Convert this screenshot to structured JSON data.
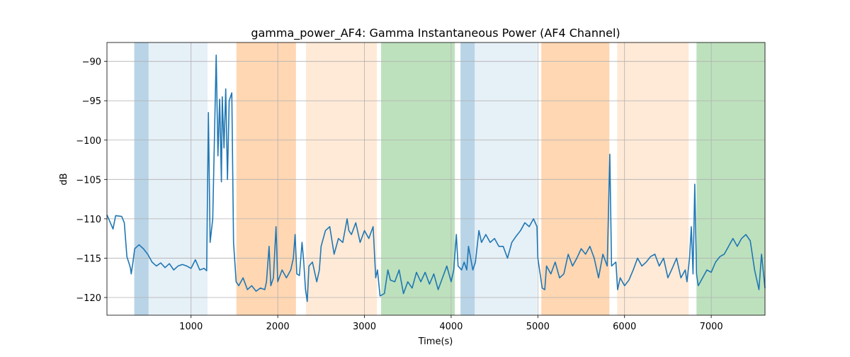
{
  "chart_data": {
    "type": "line",
    "title": "gamma_power_AF4: Gamma Instantaneous Power (AF4 Channel)",
    "x_label": "Time(s)",
    "y_label": "dB",
    "xlim": [
      30,
      7620
    ],
    "ylim": [
      -122.25,
      -87.6
    ],
    "xticks": [
      1000,
      2000,
      3000,
      4000,
      5000,
      6000,
      7000
    ],
    "yticks": [
      {
        "value": -90,
        "label": "−90"
      },
      {
        "value": -95,
        "label": "−95"
      },
      {
        "value": -100,
        "label": "−100"
      },
      {
        "value": -105,
        "label": "−105"
      },
      {
        "value": -110,
        "label": "−110"
      },
      {
        "value": -115,
        "label": "−115"
      },
      {
        "value": -120,
        "label": "−120"
      }
    ],
    "grid": true,
    "color": "#1f77b4",
    "spans": [
      {
        "x0": 345,
        "x1": 510,
        "color": "#1f77b450"
      },
      {
        "x0": 510,
        "x1": 1190,
        "color": "#1f77b41c"
      },
      {
        "x0": 1523,
        "x1": 2210,
        "color": "#ff7f0e50"
      },
      {
        "x0": 2325,
        "x1": 3143,
        "color": "#ff7f0e2a"
      },
      {
        "x0": 3192,
        "x1": 4043,
        "color": "#2ca02c50"
      },
      {
        "x0": 4108,
        "x1": 4271,
        "color": "#1f77b450"
      },
      {
        "x0": 4271,
        "x1": 4990,
        "color": "#1f77b41c"
      },
      {
        "x0": 5040,
        "x1": 5825,
        "color": "#ff7f0e50"
      },
      {
        "x0": 5914,
        "x1": 6740,
        "color": "#ff7f0e2a"
      },
      {
        "x0": 6830,
        "x1": 7620,
        "color": "#2ca02c50"
      }
    ],
    "x": [
      30,
      100,
      130,
      200,
      230,
      260,
      300,
      310,
      330,
      350,
      400,
      450,
      500,
      550,
      600,
      650,
      700,
      750,
      800,
      850,
      900,
      950,
      1000,
      1050,
      1100,
      1150,
      1180,
      1200,
      1220,
      1250,
      1290,
      1310,
      1330,
      1350,
      1360,
      1380,
      1400,
      1420,
      1440,
      1470,
      1490,
      1520,
      1550,
      1600,
      1650,
      1700,
      1750,
      1800,
      1850,
      1870,
      1900,
      1920,
      1950,
      1980,
      2000,
      2050,
      2100,
      2150,
      2180,
      2200,
      2220,
      2250,
      2280,
      2300,
      2320,
      2340,
      2360,
      2400,
      2450,
      2480,
      2500,
      2550,
      2600,
      2650,
      2700,
      2750,
      2800,
      2820,
      2850,
      2900,
      2950,
      3000,
      3050,
      3100,
      3130,
      3150,
      3180,
      3230,
      3270,
      3300,
      3350,
      3400,
      3450,
      3500,
      3550,
      3600,
      3650,
      3700,
      3750,
      3800,
      3850,
      3900,
      3950,
      4000,
      4030,
      4060,
      4080,
      4120,
      4150,
      4180,
      4200,
      4250,
      4280,
      4320,
      4350,
      4400,
      4450,
      4500,
      4550,
      4600,
      4650,
      4700,
      4750,
      4800,
      4850,
      4900,
      4950,
      4990,
      5000,
      5050,
      5080,
      5100,
      5150,
      5200,
      5250,
      5300,
      5350,
      5400,
      5450,
      5500,
      5550,
      5600,
      5650,
      5700,
      5750,
      5800,
      5830,
      5850,
      5900,
      5920,
      5950,
      6000,
      6050,
      6100,
      6150,
      6200,
      6250,
      6300,
      6350,
      6400,
      6450,
      6500,
      6550,
      6600,
      6650,
      6700,
      6720,
      6750,
      6770,
      6790,
      6810,
      6830,
      6850,
      6900,
      6950,
      7000,
      7050,
      7100,
      7150,
      7200,
      7250,
      7300,
      7350,
      7400,
      7450,
      7500,
      7550,
      7580,
      7620
    ],
    "values": [
      -109.5,
      -111.3,
      -109.6,
      -109.7,
      -110.5,
      -114.8,
      -116.2,
      -117,
      -115.5,
      -113.8,
      -113.3,
      -113.8,
      -114.5,
      -115.5,
      -116,
      -115.6,
      -116.2,
      -115.7,
      -116.5,
      -116,
      -115.8,
      -116,
      -116.3,
      -115.2,
      -116.5,
      -116.3,
      -116.6,
      -96.5,
      -113,
      -110,
      -89.2,
      -102,
      -94.8,
      -105.3,
      -94.5,
      -101,
      -93.5,
      -105,
      -95,
      -94,
      -113,
      -118,
      -118.5,
      -117.5,
      -119,
      -118.5,
      -119.2,
      -118.8,
      -119,
      -118,
      -113.5,
      -118.5,
      -117.5,
      -111,
      -118,
      -116.5,
      -117.5,
      -116.5,
      -115,
      -112,
      -117,
      -117.2,
      -113,
      -115.5,
      -119,
      -120.5,
      -116,
      -115.5,
      -118,
      -116.5,
      -113.5,
      -111.5,
      -111,
      -114.5,
      -112.5,
      -113,
      -110,
      -111.5,
      -112,
      -110.5,
      -113,
      -111.5,
      -112.5,
      -111,
      -117.5,
      -116.5,
      -119.8,
      -119.5,
      -116.5,
      -117.8,
      -118,
      -116.5,
      -119.5,
      -118,
      -118.8,
      -116.8,
      -118,
      -116.8,
      -118.3,
      -117,
      -119,
      -117.5,
      -116,
      -118,
      -116.5,
      -112,
      -116,
      -116.5,
      -115.5,
      -116.5,
      -113.5,
      -116.5,
      -115.5,
      -111.5,
      -113,
      -112,
      -113,
      -112.5,
      -113.5,
      -113.5,
      -115,
      -113,
      -112.2,
      -111.5,
      -110.5,
      -111,
      -110,
      -111,
      -115,
      -118.8,
      -119,
      -116,
      -117,
      -115.5,
      -117.5,
      -117,
      -114.5,
      -116,
      -115,
      -113.8,
      -114.5,
      -113.5,
      -115,
      -117.5,
      -114.5,
      -116,
      -101.8,
      -116,
      -115.5,
      -119,
      -117.5,
      -118.5,
      -117.8,
      -116.5,
      -115,
      -116,
      -115.5,
      -114.8,
      -114.5,
      -116,
      -115,
      -117.5,
      -116.3,
      -115,
      -117.5,
      -116.5,
      -118,
      -115,
      -111,
      -117,
      -105.6,
      -117,
      -118.5,
      -117.5,
      -116.5,
      -116.8,
      -115.5,
      -114.8,
      -114.5,
      -113.5,
      -112.5,
      -113.5,
      -112.5,
      -112,
      -112.8,
      -116.5,
      -119,
      -114.5,
      -118.8
    ]
  }
}
